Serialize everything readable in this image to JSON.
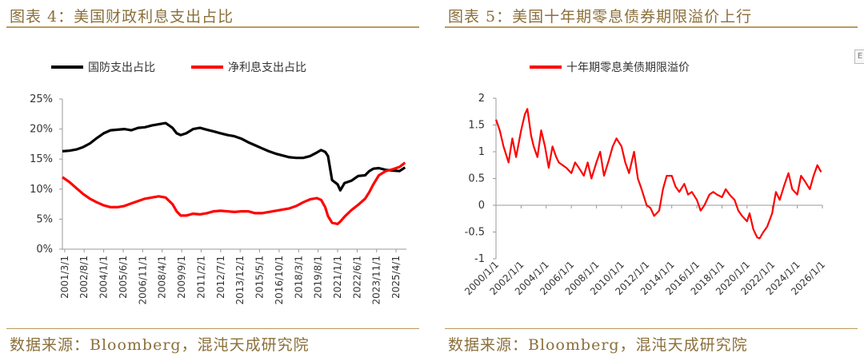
{
  "panel_left": {
    "title": "图表 4：美国财政利息支出占比",
    "source": "数据来源：Bloomberg，混沌天成研究院"
  },
  "panel_right": {
    "title": "图表 5：美国十年期零息债券期限溢价上行",
    "source": "数据来源：Bloomberg，混沌天成研究院"
  },
  "corner_glyph": "E",
  "chart_data": [
    {
      "type": "line",
      "title": "",
      "xlabel": "",
      "ylabel": "",
      "ylim": [
        0,
        25
      ],
      "y_tick_labels": [
        "0%",
        "5%",
        "10%",
        "15%",
        "20%",
        "25%"
      ],
      "y_ticks": [
        0,
        5,
        10,
        15,
        20,
        25
      ],
      "x_tick_labels": [
        "2001/3/1",
        "2002/8/1",
        "2004/1/1",
        "2005/6/1",
        "2006/11/1",
        "2008/4/1",
        "2009/9/1",
        "2011/2/1",
        "2012/7/1",
        "2013/12/1",
        "2015/5/1",
        "2016/10/1",
        "2018/3/1",
        "2019/8/1",
        "2021/1/1",
        "2022/6/1",
        "2023/11/1",
        "2025/4/1"
      ],
      "x_ticks": [
        2001.17,
        2002.58,
        2004.0,
        2005.42,
        2006.83,
        2008.25,
        2009.67,
        2011.08,
        2012.5,
        2013.92,
        2015.33,
        2016.75,
        2018.17,
        2019.58,
        2021.0,
        2022.42,
        2023.83,
        2025.25
      ],
      "xlim": [
        2001.0,
        2026.0
      ],
      "legend_position": "top",
      "grid": false,
      "series": [
        {
          "name": "国防支出占比",
          "color": "#000000",
          "x": [
            2001.0,
            2001.5,
            2002.0,
            2002.5,
            2003.0,
            2003.5,
            2004.0,
            2004.5,
            2005.0,
            2005.5,
            2006.0,
            2006.5,
            2007.0,
            2007.5,
            2008.0,
            2008.5,
            2009.0,
            2009.3,
            2009.6,
            2010.0,
            2010.5,
            2011.0,
            2011.5,
            2012.0,
            2012.5,
            2013.0,
            2013.5,
            2014.0,
            2014.5,
            2015.0,
            2015.5,
            2016.0,
            2016.5,
            2017.0,
            2017.5,
            2018.0,
            2018.5,
            2019.0,
            2019.5,
            2019.8,
            2020.1,
            2020.3,
            2020.6,
            2021.0,
            2021.2,
            2021.5,
            2022.0,
            2022.5,
            2023.0,
            2023.3,
            2023.6,
            2024.0,
            2024.5,
            2025.0,
            2025.5,
            2025.9
          ],
          "values": [
            16.3,
            16.4,
            16.6,
            17.0,
            17.6,
            18.5,
            19.3,
            19.8,
            19.9,
            20.0,
            19.8,
            20.2,
            20.3,
            20.6,
            20.8,
            21.0,
            20.2,
            19.3,
            19.0,
            19.3,
            20.0,
            20.2,
            19.9,
            19.6,
            19.3,
            19.0,
            18.8,
            18.4,
            17.8,
            17.3,
            16.8,
            16.3,
            15.9,
            15.6,
            15.3,
            15.2,
            15.2,
            15.5,
            16.1,
            16.5,
            16.2,
            15.5,
            11.5,
            10.8,
            9.8,
            11.0,
            11.4,
            12.2,
            12.3,
            13.0,
            13.4,
            13.5,
            13.2,
            13.1,
            13.0,
            13.6
          ]
        },
        {
          "name": "净利息支出占比",
          "color": "#ff0000",
          "x": [
            2001.0,
            2001.5,
            2002.0,
            2002.5,
            2003.0,
            2003.5,
            2004.0,
            2004.5,
            2005.0,
            2005.5,
            2006.0,
            2006.5,
            2007.0,
            2007.5,
            2008.0,
            2008.5,
            2009.0,
            2009.3,
            2009.6,
            2010.0,
            2010.5,
            2011.0,
            2011.5,
            2012.0,
            2012.5,
            2013.0,
            2013.5,
            2014.0,
            2014.5,
            2015.0,
            2015.5,
            2016.0,
            2016.5,
            2017.0,
            2017.5,
            2018.0,
            2018.5,
            2019.0,
            2019.5,
            2019.8,
            2020.1,
            2020.3,
            2020.6,
            2021.0,
            2021.2,
            2021.5,
            2022.0,
            2022.5,
            2023.0,
            2023.3,
            2023.6,
            2024.0,
            2024.5,
            2025.0,
            2025.5,
            2025.9
          ],
          "values": [
            12.0,
            11.2,
            10.2,
            9.2,
            8.4,
            7.8,
            7.3,
            7.0,
            7.0,
            7.2,
            7.6,
            8.0,
            8.4,
            8.6,
            8.8,
            8.6,
            7.5,
            6.3,
            5.6,
            5.6,
            5.9,
            5.8,
            6.0,
            6.3,
            6.4,
            6.3,
            6.2,
            6.3,
            6.3,
            6.0,
            6.0,
            6.2,
            6.4,
            6.6,
            6.8,
            7.2,
            7.8,
            8.3,
            8.5,
            8.2,
            7.0,
            5.5,
            4.4,
            4.2,
            4.6,
            5.4,
            6.5,
            7.4,
            8.4,
            9.5,
            10.8,
            12.3,
            13.0,
            13.3,
            13.7,
            14.4
          ]
        }
      ]
    },
    {
      "type": "line",
      "title": "",
      "xlabel": "",
      "ylabel": "",
      "ylim": [
        -1,
        2
      ],
      "y_tick_labels": [
        "-1",
        "-0.5",
        "0",
        "0.5",
        "1",
        "1.5",
        "2"
      ],
      "y_ticks": [
        -1,
        -0.5,
        0,
        0.5,
        1,
        1.5,
        2
      ],
      "x_tick_labels": [
        "2000/1/1",
        "2002/1/1",
        "2004/1/1",
        "2006/1/1",
        "2008/1/1",
        "2010/1/1",
        "2012/1/1",
        "2014/1/1",
        "2016/1/1",
        "2018/1/1",
        "2020/1/1",
        "2022/1/1",
        "2024/1/1",
        "2026/1/1"
      ],
      "x_ticks": [
        2000,
        2002,
        2004,
        2006,
        2008,
        2010,
        2012,
        2014,
        2016,
        2018,
        2020,
        2022,
        2024,
        2026
      ],
      "xlim": [
        2000.0,
        2026.0
      ],
      "legend_position": "top",
      "grid": false,
      "series": [
        {
          "name": "十年期零息美债期限溢价",
          "color": "#ff0000",
          "x": [
            2000.0,
            2000.3,
            2000.6,
            2001.0,
            2001.3,
            2001.6,
            2002.0,
            2002.3,
            2002.5,
            2002.8,
            2003.0,
            2003.3,
            2003.6,
            2003.9,
            2004.2,
            2004.5,
            2004.8,
            2005.0,
            2005.3,
            2005.6,
            2006.0,
            2006.3,
            2006.6,
            2007.0,
            2007.3,
            2007.6,
            2008.0,
            2008.3,
            2008.6,
            2009.0,
            2009.3,
            2009.6,
            2010.0,
            2010.3,
            2010.6,
            2011.0,
            2011.3,
            2011.6,
            2012.0,
            2012.3,
            2012.6,
            2013.0,
            2013.3,
            2013.6,
            2014.0,
            2014.3,
            2014.6,
            2015.0,
            2015.3,
            2015.6,
            2016.0,
            2016.3,
            2016.6,
            2017.0,
            2017.3,
            2017.6,
            2018.0,
            2018.3,
            2018.6,
            2019.0,
            2019.3,
            2019.6,
            2020.0,
            2020.2,
            2020.5,
            2020.8,
            2021.0,
            2021.3,
            2021.6,
            2022.0,
            2022.3,
            2022.6,
            2023.0,
            2023.3,
            2023.6,
            2024.0,
            2024.3,
            2024.6,
            2025.0,
            2025.3,
            2025.6,
            2025.9
          ],
          "values": [
            1.6,
            1.4,
            1.1,
            0.8,
            1.25,
            0.9,
            1.4,
            1.7,
            1.8,
            1.3,
            1.1,
            0.9,
            1.4,
            1.1,
            0.7,
            1.1,
            0.9,
            0.8,
            0.75,
            0.7,
            0.6,
            0.8,
            0.7,
            0.55,
            0.8,
            0.5,
            0.8,
            1.0,
            0.55,
            0.85,
            1.1,
            1.25,
            1.1,
            0.8,
            0.6,
            1.0,
            0.5,
            0.3,
            0.0,
            -0.05,
            -0.2,
            -0.1,
            0.3,
            0.55,
            0.55,
            0.35,
            0.25,
            0.4,
            0.2,
            0.25,
            0.1,
            -0.1,
            0.0,
            0.2,
            0.25,
            0.2,
            0.15,
            0.3,
            0.2,
            0.1,
            -0.1,
            -0.2,
            -0.3,
            -0.15,
            -0.45,
            -0.6,
            -0.62,
            -0.5,
            -0.4,
            -0.15,
            0.25,
            0.1,
            0.4,
            0.6,
            0.3,
            0.2,
            0.55,
            0.45,
            0.3,
            0.55,
            0.75,
            0.62
          ]
        }
      ]
    }
  ]
}
